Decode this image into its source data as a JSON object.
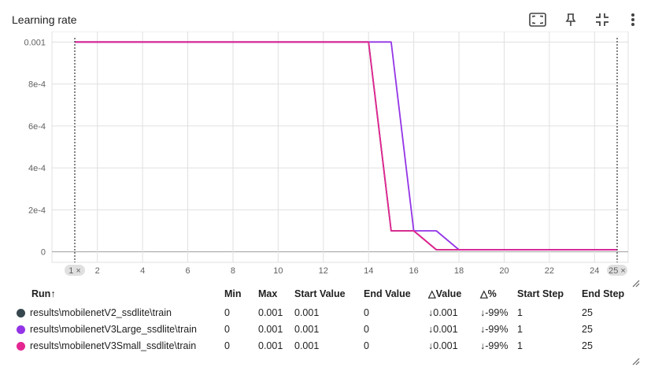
{
  "header": {
    "title": "Learning rate",
    "icons": [
      "fit-screen-icon",
      "pin-icon",
      "collapse-icon",
      "more-vert-icon"
    ]
  },
  "chart_data": {
    "type": "line",
    "title": "Learning rate",
    "xlim": [
      1,
      25
    ],
    "ylim": [
      -5e-05,
      0.00105
    ],
    "y_ticks": [
      0,
      0.0002,
      0.0004,
      0.0006,
      0.0008,
      0.001
    ],
    "y_tick_labels": [
      "0",
      "2e-4",
      "4e-4",
      "6e-4",
      "8e-4",
      "0.001"
    ],
    "x_ticks": [
      2,
      4,
      6,
      8,
      10,
      12,
      14,
      16,
      18,
      20,
      22,
      24
    ],
    "x_tick_labels": [
      "2",
      "4",
      "6",
      "8",
      "10",
      "12",
      "14",
      "16",
      "18",
      "20",
      "22",
      "24"
    ],
    "range_markers": [
      "1 ×",
      "25 ×"
    ],
    "grid": true,
    "series": [
      {
        "name": "results\\mobilenetV2_ssdlite\\train",
        "color": "#37474f",
        "x": [
          1,
          2,
          3,
          4,
          5,
          6,
          7,
          8,
          9,
          10,
          11,
          12,
          13,
          14,
          15,
          16,
          17,
          18,
          19,
          20,
          21,
          22,
          23,
          24,
          25
        ],
        "y": [
          0.001,
          0.001,
          0.001,
          0.001,
          0.001,
          0.001,
          0.001,
          0.001,
          0.001,
          0.001,
          0.001,
          0.001,
          0.001,
          0.001,
          0.0001,
          0.0001,
          1e-05,
          1e-05,
          1e-05,
          1e-05,
          1e-05,
          1e-05,
          1e-05,
          1e-05,
          1e-05
        ]
      },
      {
        "name": "results\\mobilenetV3Large_ssdlite\\train",
        "color": "#9334e6",
        "x": [
          1,
          2,
          3,
          4,
          5,
          6,
          7,
          8,
          9,
          10,
          11,
          12,
          13,
          14,
          15,
          16,
          17,
          18,
          19,
          20,
          21,
          22,
          23,
          24,
          25
        ],
        "y": [
          0.001,
          0.001,
          0.001,
          0.001,
          0.001,
          0.001,
          0.001,
          0.001,
          0.001,
          0.001,
          0.001,
          0.001,
          0.001,
          0.001,
          0.001,
          0.0001,
          0.0001,
          1e-05,
          1e-05,
          1e-05,
          1e-05,
          1e-05,
          1e-05,
          1e-05,
          1e-05
        ]
      },
      {
        "name": "results\\mobilenetV3Small_ssdlite\\train",
        "color": "#e52592",
        "x": [
          1,
          2,
          3,
          4,
          5,
          6,
          7,
          8,
          9,
          10,
          11,
          12,
          13,
          14,
          15,
          16,
          17,
          18,
          19,
          20,
          21,
          22,
          23,
          24,
          25
        ],
        "y": [
          0.001,
          0.001,
          0.001,
          0.001,
          0.001,
          0.001,
          0.001,
          0.001,
          0.001,
          0.001,
          0.001,
          0.001,
          0.001,
          0.001,
          0.0001,
          0.0001,
          1e-05,
          1e-05,
          1e-05,
          1e-05,
          1e-05,
          1e-05,
          1e-05,
          1e-05,
          1e-05
        ]
      }
    ]
  },
  "table": {
    "headers": {
      "run": "Run",
      "sort_arrow": "↑",
      "min": "Min",
      "max": "Max",
      "start_value": "Start Value",
      "end_value": "End Value",
      "delta_value": "△Value",
      "delta_pct": "△%",
      "start_step": "Start Step",
      "end_step": "End Step"
    },
    "rows": [
      {
        "run": "results\\mobilenetV2_ssdlite\\train",
        "color": "#37474f",
        "min": "0",
        "max": "0.001",
        "start_value": "0.001",
        "end_value": "0",
        "delta_value": "↓0.001",
        "delta_pct": "↓-99%",
        "start_step": "1",
        "end_step": "25"
      },
      {
        "run": "results\\mobilenetV3Large_ssdlite\\train",
        "color": "#9334e6",
        "min": "0",
        "max": "0.001",
        "start_value": "0.001",
        "end_value": "0",
        "delta_value": "↓0.001",
        "delta_pct": "↓-99%",
        "start_step": "1",
        "end_step": "25"
      },
      {
        "run": "results\\mobilenetV3Small_ssdlite\\train",
        "color": "#e52592",
        "min": "0",
        "max": "0.001",
        "start_value": "0.001",
        "end_value": "0",
        "delta_value": "↓0.001",
        "delta_pct": "↓-99%",
        "start_step": "1",
        "end_step": "25"
      }
    ]
  }
}
